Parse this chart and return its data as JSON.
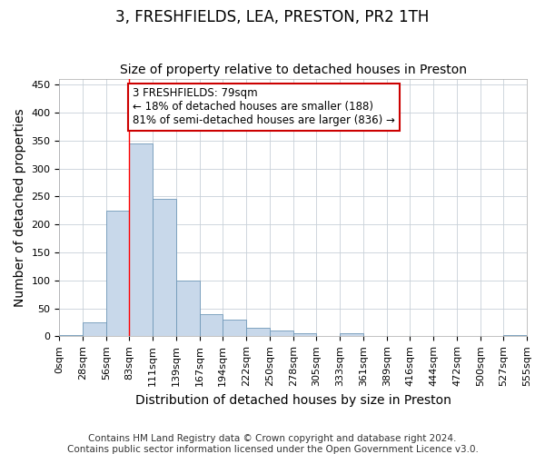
{
  "title": "3, FRESHFIELDS, LEA, PRESTON, PR2 1TH",
  "subtitle": "Size of property relative to detached houses in Preston",
  "xlabel": "Distribution of detached houses by size in Preston",
  "ylabel": "Number of detached properties",
  "footer_line1": "Contains HM Land Registry data © Crown copyright and database right 2024.",
  "footer_line2": "Contains public sector information licensed under the Open Government Licence v3.0.",
  "bar_values": [
    2,
    25,
    225,
    345,
    245,
    100,
    40,
    30,
    15,
    10,
    5,
    0,
    5,
    0,
    0,
    0,
    0,
    0,
    0,
    2
  ],
  "bar_color": "#c8d8ea",
  "bar_edge_color": "#7098b8",
  "bin_edges": [
    0,
    28,
    56,
    83,
    111,
    139,
    167,
    194,
    222,
    250,
    278,
    305,
    333,
    361,
    389,
    416,
    444,
    472,
    500,
    527,
    555
  ],
  "tick_labels": [
    "0sqm",
    "28sqm",
    "56sqm",
    "83sqm",
    "111sqm",
    "139sqm",
    "167sqm",
    "194sqm",
    "222sqm",
    "250sqm",
    "278sqm",
    "305sqm",
    "333sqm",
    "361sqm",
    "389sqm",
    "416sqm",
    "444sqm",
    "472sqm",
    "500sqm",
    "527sqm",
    "555sqm"
  ],
  "ylim": [
    0,
    460
  ],
  "yticks": [
    0,
    50,
    100,
    150,
    200,
    250,
    300,
    350,
    400,
    450
  ],
  "red_line_x": 83,
  "annotation_text": "3 FRESHFIELDS: 79sqm\n← 18% of detached houses are smaller (188)\n81% of semi-detached houses are larger (836) →",
  "annotation_box_color": "#ffffff",
  "annotation_box_edge": "#cc0000",
  "background_color": "#ffffff",
  "grid_color": "#c8d0d8",
  "title_fontsize": 12,
  "subtitle_fontsize": 10,
  "axis_label_fontsize": 10,
  "tick_fontsize": 8,
  "footer_fontsize": 7.5
}
